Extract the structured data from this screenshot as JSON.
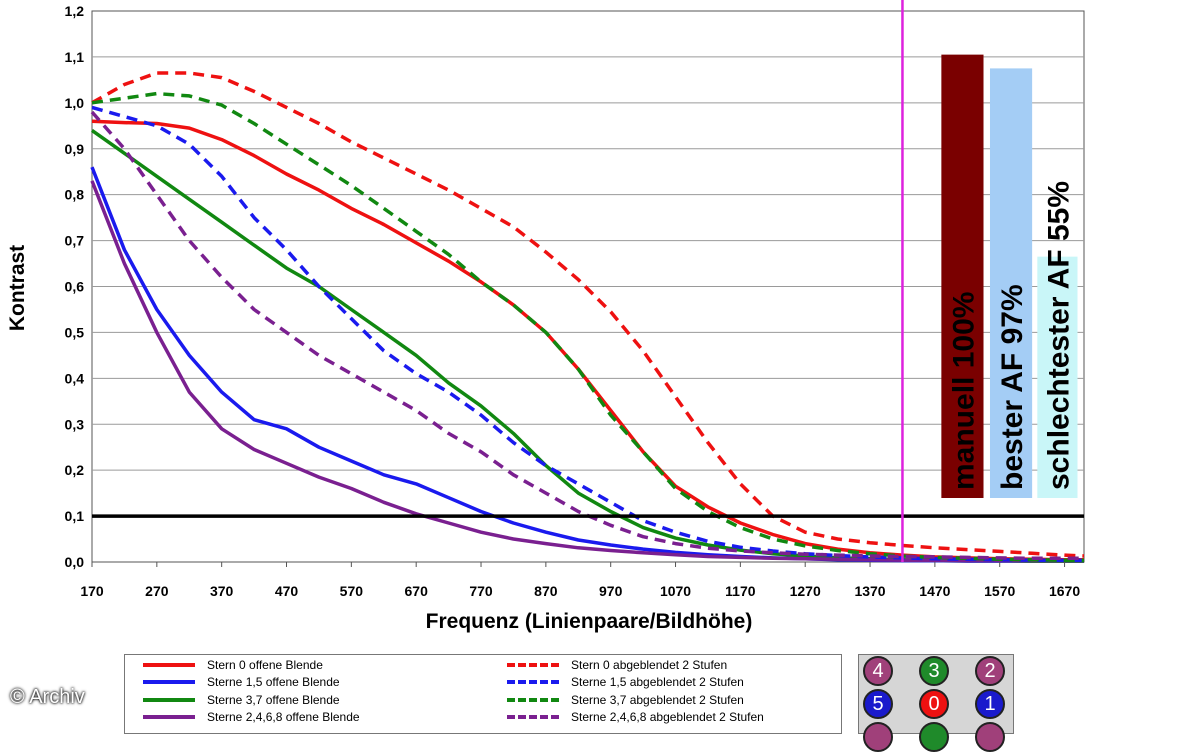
{
  "chart_data": {
    "type": "line",
    "xlabel": "Frequenz (Linienpaare/Bildhöhe)",
    "ylabel": "Kontrast",
    "xlim": [
      170,
      1700
    ],
    "ylim": [
      0,
      1.2
    ],
    "x_ticks": [
      "170",
      "270",
      "370",
      "470",
      "570",
      "670",
      "770",
      "870",
      "970",
      "1070",
      "1170",
      "1270",
      "1370",
      "1470",
      "1570",
      "1670"
    ],
    "y_ticks": [
      "0,0",
      "0,1",
      "0,2",
      "0,3",
      "0,4",
      "0,5",
      "0,6",
      "0,7",
      "0,8",
      "0,9",
      "1,0",
      "1,1",
      "1,2"
    ],
    "grid": "horizontal",
    "x": [
      170,
      220,
      270,
      320,
      370,
      420,
      470,
      520,
      570,
      620,
      670,
      720,
      770,
      820,
      870,
      920,
      970,
      1020,
      1070,
      1120,
      1170,
      1220,
      1270,
      1320,
      1370,
      1420,
      1470,
      1520,
      1570,
      1620,
      1670,
      1700
    ],
    "series": [
      {
        "name": "Stern 0 offene Blende",
        "color": "#ee1111",
        "dash": false,
        "values": [
          0.96,
          0.957,
          0.955,
          0.945,
          0.92,
          0.885,
          0.845,
          0.81,
          0.77,
          0.735,
          0.695,
          0.655,
          0.61,
          0.56,
          0.5,
          0.42,
          0.33,
          0.24,
          0.165,
          0.12,
          0.085,
          0.06,
          0.04,
          0.028,
          0.02,
          0.015,
          0.011,
          0.009,
          0.007,
          0.006,
          0.005,
          0.005
        ]
      },
      {
        "name": "Sterne 1,5 offene Blende",
        "color": "#1a1aee",
        "dash": false,
        "values": [
          0.86,
          0.68,
          0.55,
          0.45,
          0.37,
          0.31,
          0.29,
          0.25,
          0.22,
          0.19,
          0.17,
          0.14,
          0.11,
          0.085,
          0.065,
          0.048,
          0.037,
          0.028,
          0.021,
          0.016,
          0.012,
          0.009,
          0.007,
          0.005,
          0.004,
          0.003,
          0.003,
          0.002,
          0.002,
          0.002,
          0.002,
          0.002
        ]
      },
      {
        "name": "Sterne 3,7 offene Blende",
        "color": "#118811",
        "dash": false,
        "values": [
          0.94,
          0.89,
          0.84,
          0.79,
          0.74,
          0.69,
          0.64,
          0.6,
          0.55,
          0.5,
          0.45,
          0.39,
          0.34,
          0.28,
          0.21,
          0.15,
          0.11,
          0.075,
          0.052,
          0.037,
          0.026,
          0.018,
          0.013,
          0.009,
          0.007,
          0.005,
          0.004,
          0.003,
          0.003,
          0.002,
          0.002,
          0.002
        ]
      },
      {
        "name": "Sterne 2,4,6,8 offene Blende",
        "color": "#7a2090",
        "dash": false,
        "values": [
          0.83,
          0.65,
          0.5,
          0.37,
          0.29,
          0.245,
          0.215,
          0.185,
          0.16,
          0.13,
          0.105,
          0.085,
          0.065,
          0.05,
          0.04,
          0.031,
          0.025,
          0.02,
          0.016,
          0.012,
          0.01,
          0.008,
          0.007,
          0.006,
          0.005,
          0.004,
          0.004,
          0.003,
          0.003,
          0.003,
          0.003,
          0.003
        ]
      },
      {
        "name": "Stern 0 abgeblendet 2 Stufen",
        "color": "#ee1111",
        "dash": true,
        "values": [
          1.0,
          1.04,
          1.065,
          1.065,
          1.055,
          1.025,
          0.99,
          0.955,
          0.915,
          0.88,
          0.845,
          0.81,
          0.77,
          0.73,
          0.675,
          0.615,
          0.545,
          0.46,
          0.36,
          0.26,
          0.17,
          0.1,
          0.065,
          0.05,
          0.042,
          0.036,
          0.031,
          0.027,
          0.023,
          0.019,
          0.015,
          0.013
        ]
      },
      {
        "name": "Sterne 1,5 abgeblendet 2 Stufen",
        "color": "#1a1aee",
        "dash": true,
        "values": [
          0.99,
          0.97,
          0.95,
          0.91,
          0.84,
          0.75,
          0.68,
          0.6,
          0.53,
          0.46,
          0.41,
          0.37,
          0.32,
          0.26,
          0.21,
          0.17,
          0.13,
          0.09,
          0.065,
          0.045,
          0.032,
          0.024,
          0.018,
          0.014,
          0.011,
          0.009,
          0.007,
          0.006,
          0.005,
          0.004,
          0.004,
          0.004
        ]
      },
      {
        "name": "Sterne 3,7 abgeblendet 2 Stufen",
        "color": "#118811",
        "dash": true,
        "values": [
          1.0,
          1.01,
          1.02,
          1.015,
          0.995,
          0.955,
          0.91,
          0.865,
          0.82,
          0.77,
          0.72,
          0.67,
          0.61,
          0.56,
          0.5,
          0.42,
          0.32,
          0.24,
          0.16,
          0.11,
          0.075,
          0.05,
          0.035,
          0.025,
          0.018,
          0.013,
          0.01,
          0.008,
          0.006,
          0.005,
          0.004,
          0.004
        ]
      },
      {
        "name": "Sterne 2,4,6,8 abgeblendet 2 Stufen",
        "color": "#7a2090",
        "dash": true,
        "values": [
          0.98,
          0.9,
          0.8,
          0.7,
          0.62,
          0.55,
          0.5,
          0.45,
          0.41,
          0.37,
          0.33,
          0.28,
          0.24,
          0.19,
          0.15,
          0.11,
          0.08,
          0.055,
          0.04,
          0.03,
          0.024,
          0.02,
          0.017,
          0.015,
          0.013,
          0.012,
          0.011,
          0.01,
          0.009,
          0.008,
          0.008,
          0.008
        ]
      }
    ],
    "annotations": {
      "threshold": {
        "value": 0.1,
        "color": "#000000"
      },
      "marker_line": {
        "x": 1420,
        "color": "#dd22dd"
      },
      "bars": [
        {
          "label": "manuell 100%",
          "value": 1.105,
          "x_start": 1480,
          "x_end": 1545,
          "color": "#7a0000"
        },
        {
          "label": "bester AF 97%",
          "value": 1.075,
          "x_start": 1555,
          "x_end": 1620,
          "color": "#a4cdf5"
        },
        {
          "label": "schlechtester AF 55%",
          "value": 0.665,
          "x_start": 1628,
          "x_end": 1690,
          "color": "#c9f6f8"
        }
      ]
    }
  },
  "legend": {
    "items": [
      {
        "label": "Stern 0 offene Blende",
        "color": "#ee1111",
        "dash": false
      },
      {
        "label": "Sterne 1,5 offene Blende",
        "color": "#1a1aee",
        "dash": false
      },
      {
        "label": "Sterne 3,7 offene Blende",
        "color": "#118811",
        "dash": false
      },
      {
        "label": "Sterne 2,4,6,8 offene Blende",
        "color": "#7a2090",
        "dash": false
      },
      {
        "label": "Stern 0 abgeblendet 2 Stufen",
        "color": "#ee1111",
        "dash": true
      },
      {
        "label": "Sterne 1,5 abgeblendet 2 Stufen",
        "color": "#1a1aee",
        "dash": true
      },
      {
        "label": "Sterne 3,7 abgeblendet 2 Stufen",
        "color": "#118811",
        "dash": true
      },
      {
        "label": "Sterne 2,4,6,8 abgeblendet 2 Stufen",
        "color": "#7a2090",
        "dash": true
      }
    ]
  },
  "star_key": {
    "stars": [
      {
        "label": "4",
        "color": "#a0407a"
      },
      {
        "label": "3",
        "color": "#1f8a2a"
      },
      {
        "label": "2",
        "color": "#a0407a"
      },
      {
        "label": "5",
        "color": "#1a1acc"
      },
      {
        "label": "0",
        "color": "#ee1111"
      },
      {
        "label": "1",
        "color": "#1a1acc"
      },
      {
        "label": "",
        "color": "#a0407a"
      },
      {
        "label": "",
        "color": "#1f8a2a"
      },
      {
        "label": "",
        "color": "#a0407a"
      }
    ]
  },
  "copyright": "© Archiv"
}
